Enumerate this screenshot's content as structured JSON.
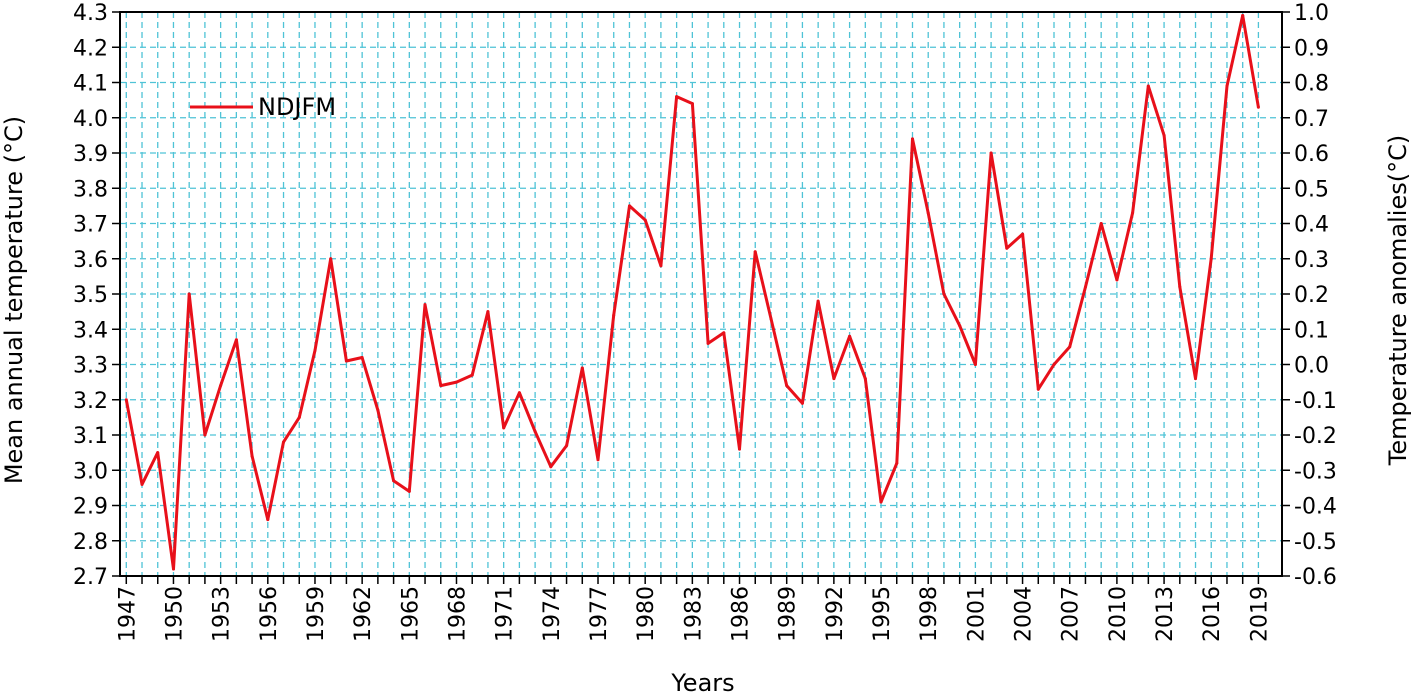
{
  "chart_data": {
    "type": "line",
    "xlabel": "Years",
    "ylabel": "Mean annual temperature (°C)",
    "y2label": "Temperature anomalies(°C)",
    "ylim": [
      2.7,
      4.3
    ],
    "y2lim": [
      -0.6,
      1.0
    ],
    "xlim": [
      1947,
      2019
    ],
    "grid": true,
    "legend": "top-left",
    "y_ticks": [
      "2.7",
      "2.8",
      "2.9",
      "3.0",
      "3.1",
      "3.2",
      "3.3",
      "3.4",
      "3.5",
      "3.6",
      "3.7",
      "3.8",
      "3.9",
      "4.0",
      "4.1",
      "4.2",
      "4.3"
    ],
    "y2_ticks": [
      "-0.6",
      "-0.5",
      "-0.4",
      "-0.3",
      "-0.2",
      "-0.1",
      "0.0",
      "0.1",
      "0.2",
      "0.3",
      "0.4",
      "0.5",
      "0.6",
      "0.7",
      "0.8",
      "0.9",
      "1.0"
    ],
    "x_tick_labels": [
      "1947",
      "1950",
      "1953",
      "1956",
      "1959",
      "1962",
      "1965",
      "1968",
      "1971",
      "1974",
      "1977",
      "1980",
      "1983",
      "1986",
      "1989",
      "1992",
      "1995",
      "1998",
      "2001",
      "2004",
      "2007",
      "2010",
      "2013",
      "2016",
      "2019"
    ],
    "series": [
      {
        "name": "NDJFM",
        "color": "#e8101a",
        "x": [
          1947,
          1948,
          1949,
          1950,
          1951,
          1952,
          1953,
          1954,
          1955,
          1956,
          1957,
          1958,
          1959,
          1960,
          1961,
          1962,
          1963,
          1964,
          1965,
          1966,
          1967,
          1968,
          1969,
          1970,
          1971,
          1972,
          1973,
          1974,
          1975,
          1976,
          1977,
          1978,
          1979,
          1980,
          1981,
          1982,
          1983,
          1984,
          1985,
          1986,
          1987,
          1988,
          1989,
          1990,
          1991,
          1992,
          1993,
          1994,
          1995,
          1996,
          1997,
          1998,
          1999,
          2000,
          2001,
          2002,
          2003,
          2004,
          2005,
          2006,
          2007,
          2008,
          2009,
          2010,
          2011,
          2012,
          2013,
          2014,
          2015,
          2016,
          2017,
          2018,
          2019
        ],
        "values": [
          3.2,
          2.96,
          3.05,
          2.72,
          3.5,
          3.1,
          3.24,
          3.37,
          3.04,
          2.86,
          3.08,
          3.15,
          3.34,
          3.6,
          3.31,
          3.32,
          3.17,
          2.97,
          2.94,
          3.47,
          3.24,
          3.25,
          3.27,
          3.45,
          3.12,
          3.22,
          3.11,
          3.01,
          3.07,
          3.29,
          3.03,
          3.44,
          3.75,
          3.71,
          3.58,
          4.06,
          4.04,
          3.36,
          3.39,
          3.06,
          3.62,
          3.43,
          3.24,
          3.19,
          3.48,
          3.26,
          3.38,
          3.26,
          2.91,
          3.02,
          3.94,
          3.73,
          3.5,
          3.41,
          3.3,
          3.9,
          3.63,
          3.67,
          3.23,
          3.3,
          3.35,
          3.52,
          3.7,
          3.54,
          3.73,
          4.09,
          3.95,
          3.52,
          3.26,
          3.6,
          4.09,
          4.29,
          4.03
        ]
      }
    ]
  }
}
